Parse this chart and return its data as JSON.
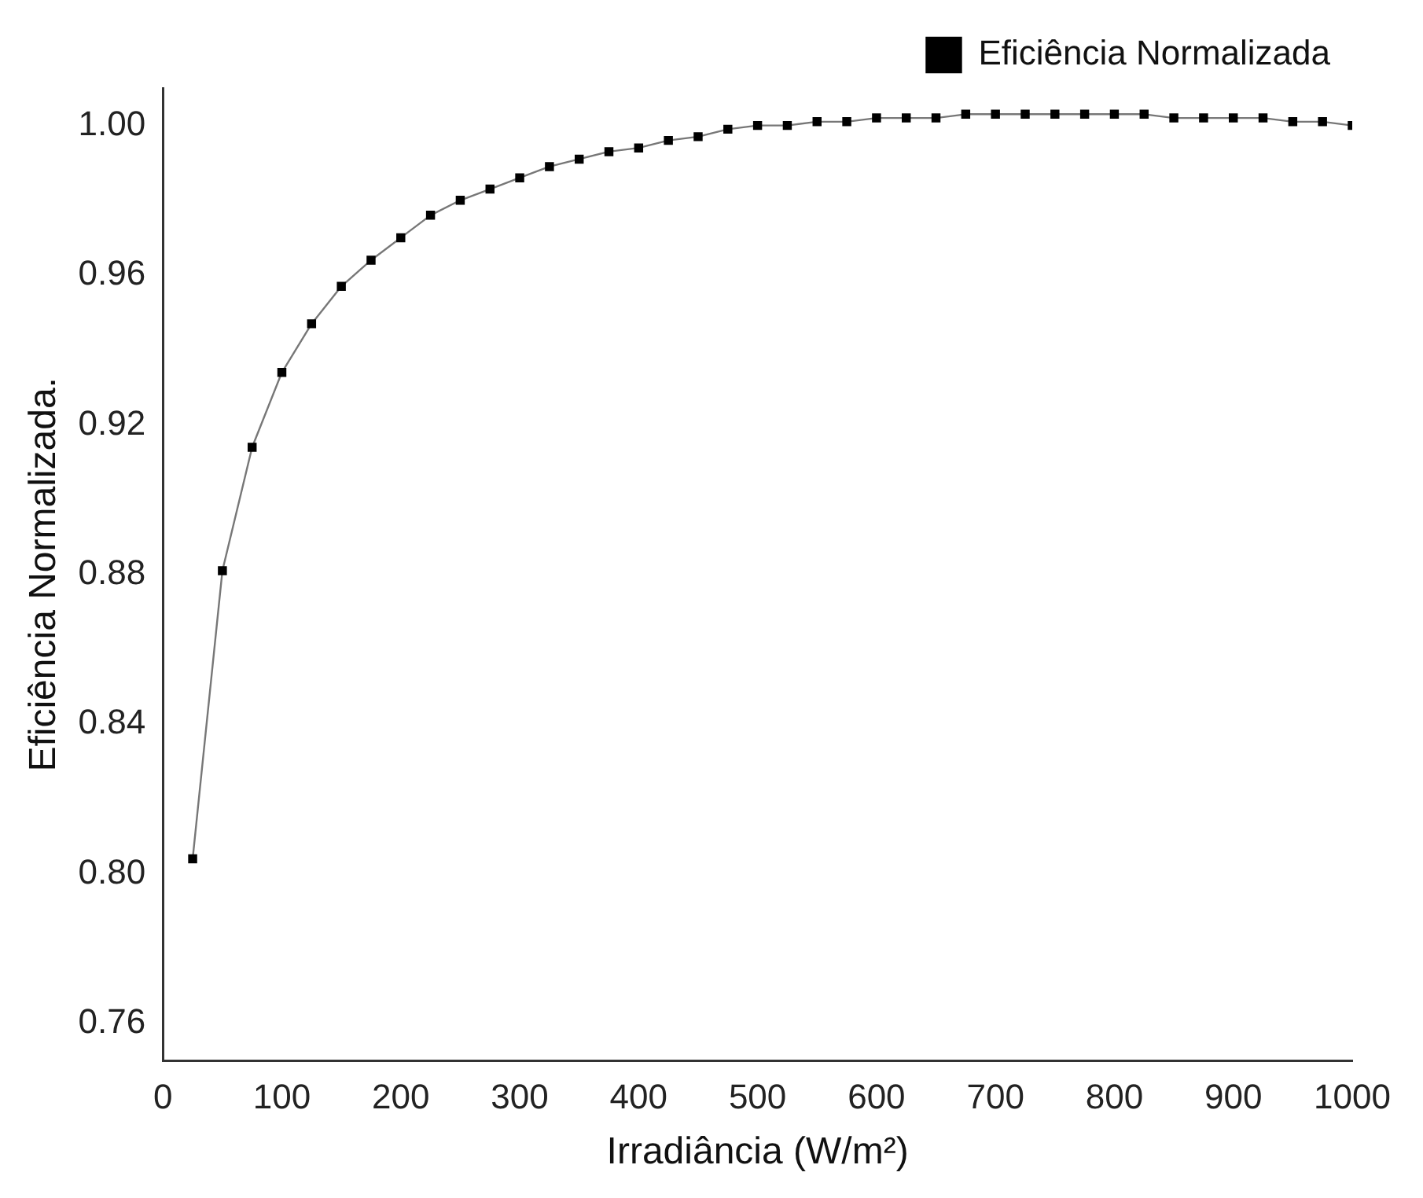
{
  "chart_data": {
    "type": "line",
    "xlabel": "Irradiância (W/m²)",
    "ylabel": "Eficiência Normalizada.",
    "x": [
      25,
      50,
      75,
      100,
      125,
      150,
      175,
      200,
      225,
      250,
      275,
      300,
      325,
      350,
      375,
      400,
      425,
      450,
      475,
      500,
      525,
      550,
      575,
      600,
      625,
      650,
      675,
      700,
      725,
      750,
      775,
      800,
      825,
      850,
      875,
      900,
      925,
      950,
      975,
      1000
    ],
    "series": [
      {
        "name": "Eficiência Normalizada",
        "color": "#000000",
        "values": [
          0.804,
          0.881,
          0.914,
          0.934,
          0.947,
          0.957,
          0.964,
          0.97,
          0.976,
          0.98,
          0.983,
          0.986,
          0.989,
          0.991,
          0.993,
          0.994,
          0.996,
          0.997,
          0.999,
          1.0,
          1.0,
          1.001,
          1.001,
          1.002,
          1.002,
          1.002,
          1.003,
          1.003,
          1.003,
          1.003,
          1.003,
          1.003,
          1.003,
          1.002,
          1.002,
          1.002,
          1.002,
          1.001,
          1.001,
          1.0
        ]
      }
    ],
    "xlim": [
      0,
      1000
    ],
    "xticks": [
      0,
      100,
      200,
      300,
      400,
      500,
      600,
      700,
      800,
      900,
      1000
    ],
    "ylim": [
      0.75,
      1.01
    ],
    "yticks": [
      {
        "value": 0.76,
        "label": "0.76"
      },
      {
        "value": 0.8,
        "label": "0.80"
      },
      {
        "value": 0.84,
        "label": "0.84"
      },
      {
        "value": 0.88,
        "label": "0.88"
      },
      {
        "value": 0.92,
        "label": "0.92"
      },
      {
        "value": 0.96,
        "label": "0.96"
      },
      {
        "value": 1.0,
        "label": "1.00"
      }
    ],
    "grid": false,
    "legend": "top right",
    "marker": "square",
    "line_style": "solid"
  }
}
